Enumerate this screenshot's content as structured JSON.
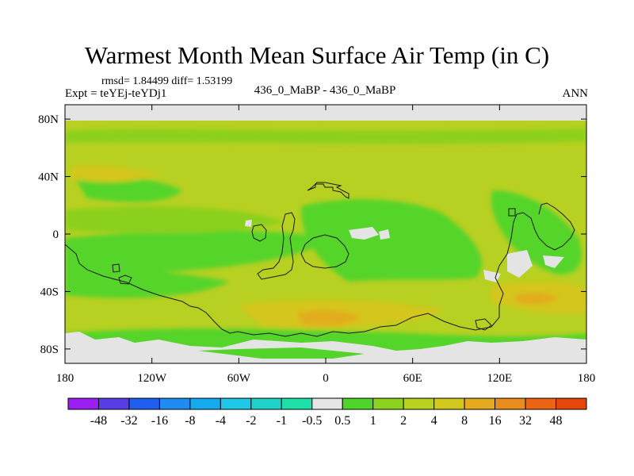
{
  "header": {
    "title": "Warmest Month Mean Surface Air Temp (in C)",
    "stats": "rmsd= 1.84499 diff= 1.53199",
    "expt": "Expt = teYEj-teYDj1",
    "center_label": "436_0_MaBP - 436_0_MaBP",
    "season": "ANN"
  },
  "map": {
    "lon_ticks": [
      {
        "value": -180,
        "label": "180"
      },
      {
        "value": -120,
        "label": "120W"
      },
      {
        "value": -60,
        "label": "60W"
      },
      {
        "value": 0,
        "label": "0"
      },
      {
        "value": 60,
        "label": "60E"
      },
      {
        "value": 120,
        "label": "120E"
      },
      {
        "value": 180,
        "label": "180"
      }
    ],
    "lat_ticks": [
      {
        "value": 80,
        "label": "80N"
      },
      {
        "value": 40,
        "label": "40N"
      },
      {
        "value": 0,
        "label": "0"
      },
      {
        "value": -40,
        "label": "40S"
      },
      {
        "value": -80,
        "label": "80S"
      }
    ],
    "lon_range": [
      -180,
      180
    ],
    "lat_range": [
      -90,
      90
    ]
  },
  "colorbar": {
    "levels": [
      "-48",
      "-32",
      "-16",
      "-8",
      "-4",
      "-2",
      "-1",
      "-0.5",
      "0.5",
      "1",
      "2",
      "4",
      "8",
      "16",
      "32",
      "48"
    ],
    "colors": [
      "#9b1ef2",
      "#5a3ce6",
      "#1e5ff0",
      "#1e8cf0",
      "#14aaf0",
      "#1ec8e6",
      "#1ed2c8",
      "#1ee1aa",
      "#e6e6e6",
      "#4fd42a",
      "#8cd21e",
      "#b9d21e",
      "#d2c81e",
      "#e6aa1e",
      "#eb8c1e",
      "#eb6414",
      "#e6460a"
    ]
  },
  "colors": {
    "field_base": "#b8d021",
    "warm": "#d4c61c",
    "warmer": "#e2ad1f",
    "cool": "#8bd01f",
    "coolest": "#54d42a",
    "missing": "#e4e4e4"
  }
}
